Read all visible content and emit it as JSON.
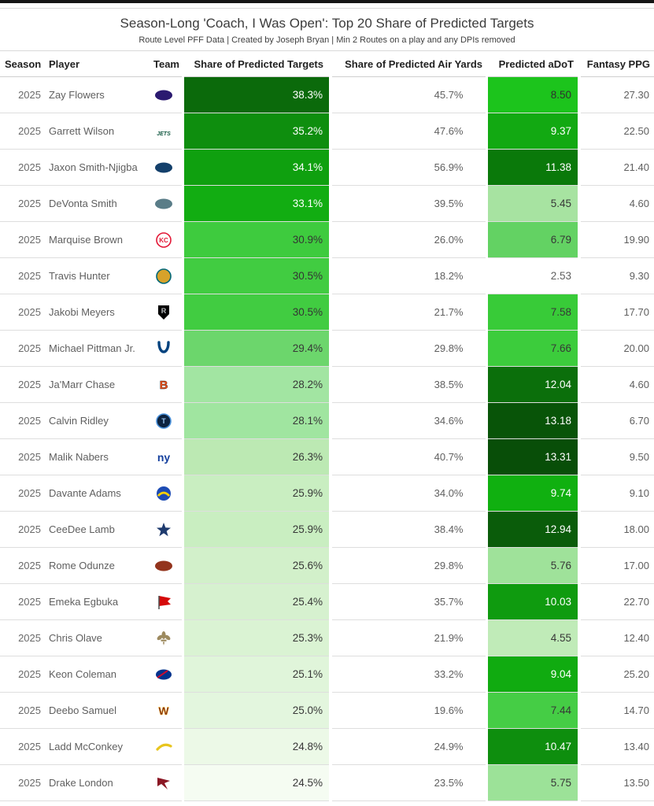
{
  "header": {
    "title": "Season-Long 'Coach, I Was Open': Top 20 Share of Predicted Targets",
    "subtitle": "Route Level PFF Data | Created by Joseph Bryan | Min 2 Routes on a play and any DPIs removed"
  },
  "colors": {
    "scale_max_green": "#0b6a0b",
    "scale_mid_green": "#41cc41",
    "scale_min": "#ffffff",
    "row_text": "#5f5f5f",
    "header_text": "#212121",
    "divider": "#dedede"
  },
  "chart_data": {
    "type": "table",
    "title": "Season-Long 'Coach, I Was Open': Top 20 Share of Predicted Targets",
    "subtitle": "Route Level PFF Data | Created by Joseph Bryan | Min 2 Routes on a play and any DPIs removed",
    "conditional_formatting": "green color scale applied to 'Share of Predicted Targets' and 'Predicted aDoT' columns (darker green = higher value)",
    "columns": [
      "Season",
      "Player",
      "Team",
      "Share of Predicted Targets",
      "Share of Predicted Air Yards",
      "Predicted aDoT",
      "Fantasy PPG"
    ],
    "rows": [
      {
        "season": "2025",
        "player": "Zay Flowers",
        "team": "BAL",
        "targets": "38.3%",
        "targets_bg": "#0b6a0b",
        "targets_fg": "#ffffff",
        "air_yards": "45.7%",
        "adot": "8.50",
        "adot_bg": "#1cc41c",
        "adot_fg": "#2f2f2f",
        "ppg": "27.30"
      },
      {
        "season": "2025",
        "player": "Garrett Wilson",
        "team": "NYJ",
        "targets": "35.2%",
        "targets_bg": "#0e8e0e",
        "targets_fg": "#ffffff",
        "air_yards": "47.6%",
        "adot": "9.37",
        "adot_bg": "#12a912",
        "adot_fg": "#ffffff",
        "ppg": "22.50"
      },
      {
        "season": "2025",
        "player": "Jaxon Smith-Njigba",
        "team": "SEA",
        "targets": "34.1%",
        "targets_bg": "#0fa00f",
        "targets_fg": "#ffffff",
        "air_yards": "56.9%",
        "adot": "11.38",
        "adot_bg": "#0a790a",
        "adot_fg": "#ffffff",
        "ppg": "21.40"
      },
      {
        "season": "2025",
        "player": "DeVonta Smith",
        "team": "PHI",
        "targets": "33.1%",
        "targets_bg": "#12ad12",
        "targets_fg": "#ffffff",
        "air_yards": "39.5%",
        "adot": "5.45",
        "adot_bg": "#a7e3a1",
        "adot_fg": "#373737",
        "ppg": "4.60"
      },
      {
        "season": "2025",
        "player": "Marquise Brown",
        "team": "KC",
        "targets": "30.9%",
        "targets_bg": "#3ecb3e",
        "targets_fg": "#343434",
        "air_yards": "26.0%",
        "adot": "6.79",
        "adot_bg": "#63d263",
        "adot_fg": "#373737",
        "ppg": "19.90"
      },
      {
        "season": "2025",
        "player": "Travis Hunter",
        "team": "JAX",
        "targets": "30.5%",
        "targets_bg": "#41cc41",
        "targets_fg": "#343434",
        "air_yards": "18.2%",
        "adot": "2.53",
        "adot_bg": "#ffffff",
        "adot_fg": "#5f5f5f",
        "ppg": "9.30"
      },
      {
        "season": "2025",
        "player": "Jakobi Meyers",
        "team": "LV",
        "targets": "30.5%",
        "targets_bg": "#41cc41",
        "targets_fg": "#343434",
        "air_yards": "21.7%",
        "adot": "7.58",
        "adot_bg": "#38cb38",
        "adot_fg": "#373737",
        "ppg": "17.70"
      },
      {
        "season": "2025",
        "player": "Michael Pittman Jr.",
        "team": "IND",
        "targets": "29.4%",
        "targets_bg": "#6cd66c",
        "targets_fg": "#373737",
        "air_yards": "29.8%",
        "adot": "7.66",
        "adot_bg": "#3ccc3c",
        "adot_fg": "#373737",
        "ppg": "20.00"
      },
      {
        "season": "2025",
        "player": "Ja'Marr Chase",
        "team": "CIN",
        "targets": "28.2%",
        "targets_bg": "#a2e5a2",
        "targets_fg": "#373737",
        "air_yards": "38.5%",
        "adot": "12.04",
        "adot_bg": "#0b6f0b",
        "adot_fg": "#ffffff",
        "ppg": "4.60"
      },
      {
        "season": "2025",
        "player": "Calvin Ridley",
        "team": "TEN",
        "targets": "28.1%",
        "targets_bg": "#a0e5a0",
        "targets_fg": "#373737",
        "air_yards": "34.6%",
        "adot": "13.18",
        "adot_bg": "#085408",
        "adot_fg": "#ffffff",
        "ppg": "6.70"
      },
      {
        "season": "2025",
        "player": "Malik Nabers",
        "team": "NYG",
        "targets": "26.3%",
        "targets_bg": "#bce9b3",
        "targets_fg": "#373737",
        "air_yards": "40.7%",
        "adot": "13.31",
        "adot_bg": "#084e08",
        "adot_fg": "#ffffff",
        "ppg": "9.50"
      },
      {
        "season": "2025",
        "player": "Davante Adams",
        "team": "LAR",
        "targets": "25.9%",
        "targets_bg": "#c9eec1",
        "targets_fg": "#373737",
        "air_yards": "34.0%",
        "adot": "9.74",
        "adot_bg": "#10b010",
        "adot_fg": "#ffffff",
        "ppg": "9.10"
      },
      {
        "season": "2025",
        "player": "CeeDee Lamb",
        "team": "DAL",
        "targets": "25.9%",
        "targets_bg": "#c9eec1",
        "targets_fg": "#373737",
        "air_yards": "38.4%",
        "adot": "12.94",
        "adot_bg": "#0a5c0a",
        "adot_fg": "#ffffff",
        "ppg": "18.00"
      },
      {
        "season": "2025",
        "player": "Rome Odunze",
        "team": "CHI",
        "targets": "25.6%",
        "targets_bg": "#d2f0ca",
        "targets_fg": "#373737",
        "air_yards": "29.8%",
        "adot": "5.76",
        "adot_bg": "#9fe29a",
        "adot_fg": "#373737",
        "ppg": "17.00"
      },
      {
        "season": "2025",
        "player": "Emeka Egbuka",
        "team": "TB",
        "targets": "25.4%",
        "targets_bg": "#d6f1cf",
        "targets_fg": "#373737",
        "air_yards": "35.7%",
        "adot": "10.03",
        "adot_bg": "#0f9b0f",
        "adot_fg": "#ffffff",
        "ppg": "22.70"
      },
      {
        "season": "2025",
        "player": "Chris Olave",
        "team": "NO",
        "targets": "25.3%",
        "targets_bg": "#daf3d3",
        "targets_fg": "#373737",
        "air_yards": "21.9%",
        "adot": "4.55",
        "adot_bg": "#c0ebb8",
        "adot_fg": "#373737",
        "ppg": "12.40"
      },
      {
        "season": "2025",
        "player": "Keon Coleman",
        "team": "BUF",
        "targets": "25.1%",
        "targets_bg": "#e0f5da",
        "targets_fg": "#373737",
        "air_yards": "33.2%",
        "adot": "9.04",
        "adot_bg": "#10ab10",
        "adot_fg": "#ffffff",
        "ppg": "25.20"
      },
      {
        "season": "2025",
        "player": "Deebo Samuel",
        "team": "WAS",
        "targets": "25.0%",
        "targets_bg": "#e3f6de",
        "targets_fg": "#373737",
        "air_yards": "19.6%",
        "adot": "7.44",
        "adot_bg": "#45cd45",
        "adot_fg": "#373737",
        "ppg": "14.70"
      },
      {
        "season": "2025",
        "player": "Ladd McConkey",
        "team": "LAC",
        "targets": "24.8%",
        "targets_bg": "#ecf9e7",
        "targets_fg": "#373737",
        "air_yards": "24.9%",
        "adot": "10.47",
        "adot_bg": "#0e8e0e",
        "adot_fg": "#ffffff",
        "ppg": "13.40"
      },
      {
        "season": "2025",
        "player": "Drake London",
        "team": "ATL",
        "targets": "24.5%",
        "targets_bg": "#f5fcf2",
        "targets_fg": "#373737",
        "air_yards": "23.5%",
        "adot": "5.75",
        "adot_bg": "#9ce298",
        "adot_fg": "#373737",
        "ppg": "13.50"
      }
    ]
  },
  "teams": {
    "BAL": {
      "kind": "oval",
      "fill": "#2b1a70"
    },
    "NYJ": {
      "kind": "wordmark",
      "label": "JETS",
      "fill": "#115740",
      "size": 7,
      "style": "italic"
    },
    "SEA": {
      "kind": "oval",
      "fill": "#14406b"
    },
    "PHI": {
      "kind": "oval",
      "fill": "#5a7d88"
    },
    "KC": {
      "kind": "circle-text",
      "fill": "#ffffff",
      "stroke": "#e31837",
      "label": "KC",
      "labelFill": "#e31837",
      "size": 8
    },
    "JAX": {
      "kind": "circle-text",
      "fill": "#d7a22a",
      "stroke": "#006778",
      "label": "",
      "labelFill": "#000000",
      "size": 8
    },
    "LV": {
      "kind": "shield",
      "fill": "#000000",
      "label": "R",
      "labelFill": "#b7bcbf"
    },
    "IND": {
      "kind": "horseshoe",
      "stroke": "#01427e"
    },
    "CIN": {
      "kind": "wordmark",
      "label": "B",
      "fill": "#fb4f14",
      "size": 15,
      "strokeColor": "#1a1a1a"
    },
    "TEN": {
      "kind": "circle-text",
      "fill": "#0c2340",
      "stroke": "#4b92db",
      "label": "T",
      "labelFill": "#9bc6f2",
      "size": 9
    },
    "NYG": {
      "kind": "wordmark",
      "label": "ny",
      "fill": "#15409e",
      "size": 14
    },
    "LAR": {
      "kind": "ram",
      "fill": "#1c4bb4",
      "horn": "#ffd100"
    },
    "DAL": {
      "kind": "star",
      "fill": "#1e3a6e"
    },
    "CHI": {
      "kind": "oval",
      "fill": "#93341d"
    },
    "TB": {
      "kind": "flag",
      "fill": "#d50a0a",
      "pole": "#4a4a4a"
    },
    "NO": {
      "kind": "fleur",
      "fill": "#9d8a5f"
    },
    "BUF": {
      "kind": "slash-oval",
      "fill": "#00338d",
      "slash": "#c60c30"
    },
    "WAS": {
      "kind": "wordmark",
      "label": "W",
      "fill": "#7b2d1e",
      "size": 14,
      "strokeColor": "#ffb612"
    },
    "LAC": {
      "kind": "bolt",
      "stroke": "#e8c51d"
    },
    "ATL": {
      "kind": "bird",
      "fill": "#8b1724"
    }
  }
}
